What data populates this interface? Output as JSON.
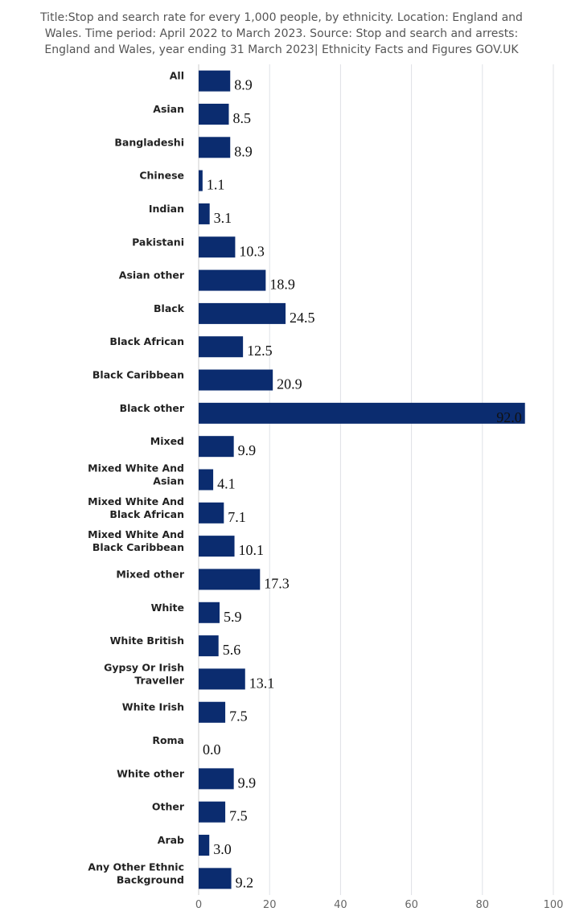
{
  "chart_data": {
    "type": "bar",
    "orientation": "horizontal",
    "title": "Title:Stop and search rate for every 1,000 people, by ethnicity. Location: England and Wales. Time period: April 2022 to March 2023. Source: Stop and search and arrests: England and Wales, year ending 31 March 2023| Ethnicity Facts and Figures GOV.UK",
    "xlabel": "",
    "ylabel": "",
    "xlim": [
      0,
      100
    ],
    "ticks": [
      0,
      20,
      40,
      60,
      80,
      100
    ],
    "grid": true,
    "bar_color": "#0b2c6f",
    "categories": [
      "All",
      "Asian",
      "Bangladeshi",
      "Chinese",
      "Indian",
      "Pakistani",
      "Asian other",
      "Black",
      "Black African",
      "Black Caribbean",
      "Black other",
      "Mixed",
      "Mixed White And Asian",
      "Mixed White And Black African",
      "Mixed White And Black Caribbean",
      "Mixed other",
      "White",
      "White British",
      "Gypsy Or Irish Traveller",
      "White Irish",
      "Roma",
      "White other",
      "Other",
      "Arab",
      "Any Other Ethnic Background"
    ],
    "values": [
      8.9,
      8.5,
      8.9,
      1.1,
      3.1,
      10.3,
      18.9,
      24.5,
      12.5,
      20.9,
      92.0,
      9.9,
      4.1,
      7.1,
      10.1,
      17.3,
      5.9,
      5.6,
      13.1,
      7.5,
      0.0,
      9.9,
      7.5,
      3.0,
      9.2
    ],
    "value_labels": [
      "8.9",
      "8.5",
      "8.9",
      "1.1",
      "3.1",
      "10.3",
      "18.9",
      "24.5",
      "12.5",
      "20.9",
      "92.0",
      "9.9",
      "4.1",
      "7.1",
      "10.1",
      "17.3",
      "5.9",
      "5.6",
      "13.1",
      "7.5",
      "0.0",
      "9.9",
      "7.5",
      "3.0",
      "9.2"
    ]
  }
}
